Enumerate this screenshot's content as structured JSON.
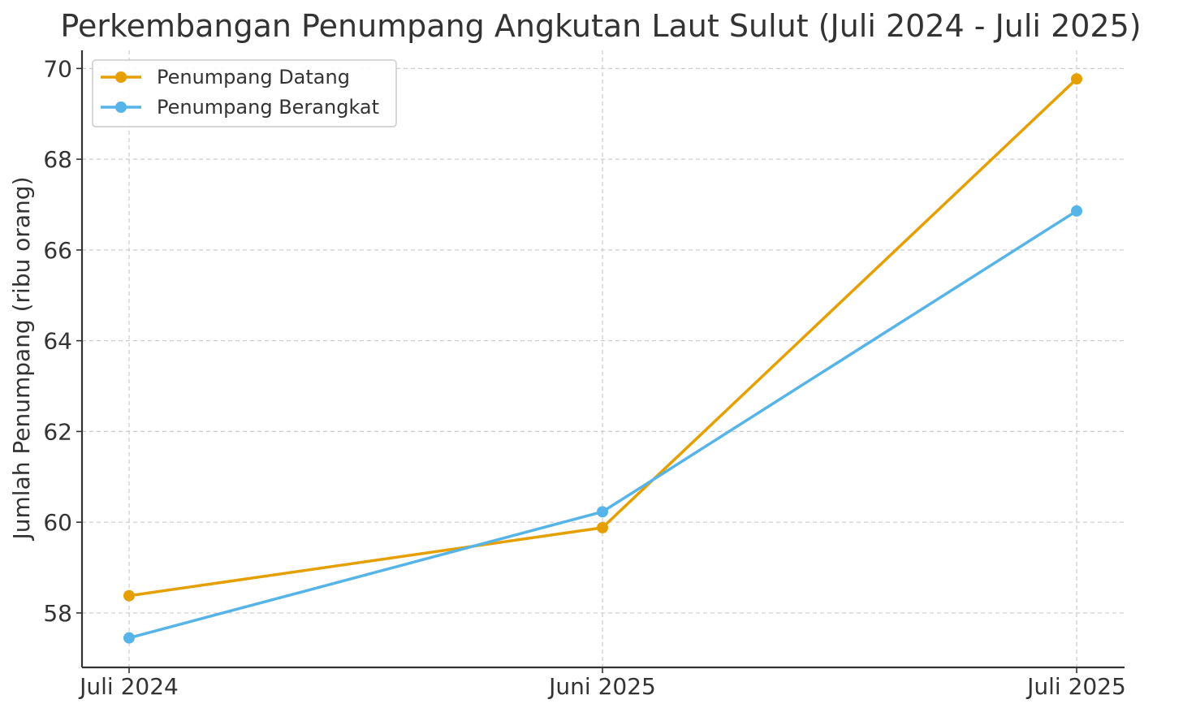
{
  "chart_data": {
    "type": "line",
    "title": "Perkembangan Penumpang Angkutan Laut Sulut (Juli 2024 - Juli 2025)",
    "xlabel": "",
    "ylabel": "Jumlah Penumpang (ribu orang)",
    "categories": [
      "Juli 2024",
      "Juni 2025",
      "Juli 2025"
    ],
    "ylim": [
      56.8,
      70.4
    ],
    "yticks": [
      58,
      60,
      62,
      64,
      66,
      68,
      70
    ],
    "grid": true,
    "legend_position": "upper-left",
    "series": [
      {
        "name": "Penumpang Datang",
        "color": "#E69F00",
        "values": [
          58.38,
          59.88,
          69.77
        ]
      },
      {
        "name": "Penumpang Berangkat",
        "color": "#56B4E9",
        "values": [
          57.45,
          60.23,
          66.86
        ]
      }
    ]
  }
}
